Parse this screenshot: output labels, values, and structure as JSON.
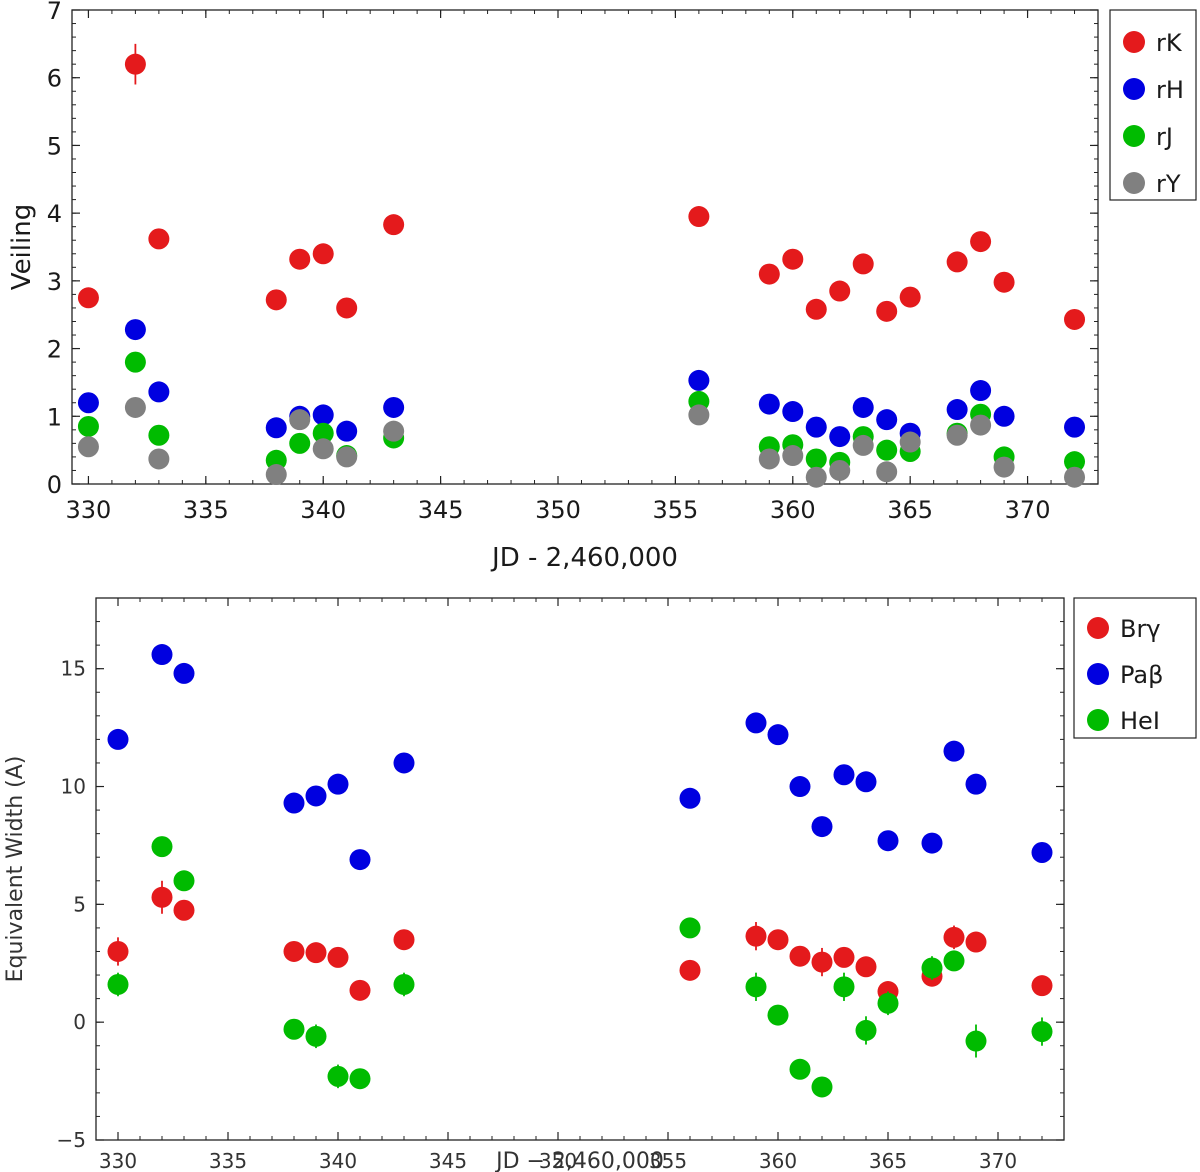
{
  "chart_data": [
    {
      "type": "scatter",
      "xlabel": "JD - 2,460,000",
      "ylabel": "Veiling",
      "xlim": [
        329.3,
        373
      ],
      "ylim": [
        0,
        7
      ],
      "xticks": [
        330,
        335,
        340,
        345,
        350,
        355,
        360,
        365,
        370
      ],
      "yticks": [
        0,
        1,
        2,
        3,
        4,
        5,
        6,
        7
      ],
      "legend_position": "outside-right-top",
      "grid": false,
      "series": [
        {
          "name": "rK",
          "color": "#e41a1c",
          "x": [
            330,
            332,
            333,
            338,
            339,
            340,
            341,
            343,
            356,
            359,
            360,
            361,
            362,
            363,
            364,
            365,
            367,
            368,
            369,
            372
          ],
          "y": [
            2.75,
            6.2,
            3.62,
            2.72,
            3.32,
            3.4,
            2.6,
            3.83,
            3.95,
            3.1,
            3.32,
            2.58,
            2.85,
            3.25,
            2.55,
            2.76,
            3.28,
            3.58,
            2.98,
            2.43
          ],
          "yerr": [
            0.05,
            0.3,
            0.05,
            0.05,
            0.05,
            0.05,
            0.05,
            0.05,
            0.05,
            0.05,
            0.05,
            0.05,
            0.05,
            0.05,
            0.05,
            0.05,
            0.05,
            0.05,
            0.05,
            0.05
          ]
        },
        {
          "name": "rH",
          "color": "#0000e0",
          "x": [
            330,
            332,
            333,
            338,
            339,
            340,
            341,
            343,
            356,
            359,
            360,
            361,
            362,
            363,
            364,
            365,
            367,
            368,
            369,
            372
          ],
          "y": [
            1.2,
            2.28,
            1.36,
            0.83,
            1.0,
            1.02,
            0.78,
            1.13,
            1.53,
            1.18,
            1.07,
            0.84,
            0.7,
            1.13,
            0.95,
            0.75,
            1.1,
            1.38,
            1.0,
            0.84
          ]
        },
        {
          "name": "rJ",
          "color": "#00bb00",
          "x": [
            330,
            332,
            333,
            338,
            339,
            340,
            341,
            343,
            356,
            359,
            360,
            361,
            362,
            363,
            364,
            365,
            367,
            368,
            369,
            372
          ],
          "y": [
            0.85,
            1.8,
            0.72,
            0.35,
            0.6,
            0.75,
            0.42,
            0.68,
            1.22,
            0.55,
            0.58,
            0.37,
            0.32,
            0.7,
            0.5,
            0.48,
            0.75,
            1.03,
            0.4,
            0.33
          ]
        },
        {
          "name": "rY",
          "color": "#808080",
          "x": [
            330,
            332,
            333,
            338,
            339,
            340,
            341,
            343,
            356,
            359,
            360,
            361,
            362,
            363,
            364,
            365,
            367,
            368,
            369,
            372
          ],
          "y": [
            0.55,
            1.13,
            0.37,
            0.14,
            0.95,
            0.52,
            0.4,
            0.78,
            1.02,
            0.37,
            0.42,
            0.1,
            0.2,
            0.57,
            0.18,
            0.62,
            0.72,
            0.87,
            0.25,
            0.1
          ]
        }
      ]
    },
    {
      "type": "scatter",
      "xlabel": "JD − 2,460,000",
      "ylabel": "Equivalent Width (A)",
      "xlim": [
        329,
        373
      ],
      "ylim": [
        -5,
        18
      ],
      "xticks": [
        330,
        335,
        340,
        345,
        350,
        355,
        360,
        365,
        370
      ],
      "yticks": [
        -5,
        0,
        5,
        10,
        15
      ],
      "legend_position": "outside-right-top",
      "grid": false,
      "series": [
        {
          "name": "Brγ",
          "color": "#e41a1c",
          "x": [
            330,
            332,
            333,
            338,
            339,
            340,
            341,
            343,
            356,
            359,
            360,
            361,
            362,
            363,
            364,
            365,
            367,
            368,
            369,
            372
          ],
          "y": [
            3.0,
            5.3,
            4.75,
            3.0,
            2.95,
            2.75,
            1.35,
            3.5,
            2.2,
            3.65,
            3.5,
            2.8,
            2.55,
            2.75,
            2.35,
            1.3,
            1.95,
            3.6,
            3.4,
            1.55
          ],
          "yerr": [
            0.6,
            0.7,
            0.3,
            0.3,
            0.3,
            0.3,
            0.3,
            0.3,
            0.3,
            0.6,
            0.3,
            0.4,
            0.6,
            0.4,
            0.3,
            0.3,
            0.3,
            0.5,
            0.3,
            0.3
          ]
        },
        {
          "name": "Paβ",
          "color": "#0000e0",
          "x": [
            330,
            332,
            333,
            338,
            339,
            340,
            341,
            343,
            356,
            359,
            360,
            361,
            362,
            363,
            364,
            365,
            367,
            368,
            369,
            372
          ],
          "y": [
            12.0,
            15.6,
            14.8,
            9.3,
            9.6,
            10.1,
            6.9,
            11.0,
            9.5,
            12.7,
            12.2,
            10.0,
            8.3,
            10.5,
            10.2,
            7.7,
            7.6,
            11.5,
            10.1,
            7.2
          ]
        },
        {
          "name": "HeI",
          "color": "#00bb00",
          "x": [
            330,
            332,
            333,
            338,
            339,
            340,
            341,
            343,
            356,
            359,
            360,
            361,
            362,
            363,
            364,
            365,
            367,
            368,
            369,
            372
          ],
          "y": [
            1.6,
            7.45,
            6.0,
            -0.3,
            -0.6,
            -2.3,
            -2.4,
            1.6,
            4.0,
            1.5,
            0.3,
            -2.0,
            -2.75,
            1.5,
            -0.35,
            0.8,
            2.3,
            2.6,
            -0.8,
            -0.4
          ],
          "yerr": [
            0.5,
            0.3,
            0.3,
            0.3,
            0.5,
            0.5,
            0.4,
            0.5,
            0.3,
            0.6,
            0.3,
            0.3,
            0.4,
            0.6,
            0.6,
            0.5,
            0.5,
            0.4,
            0.7,
            0.6
          ]
        }
      ]
    }
  ]
}
